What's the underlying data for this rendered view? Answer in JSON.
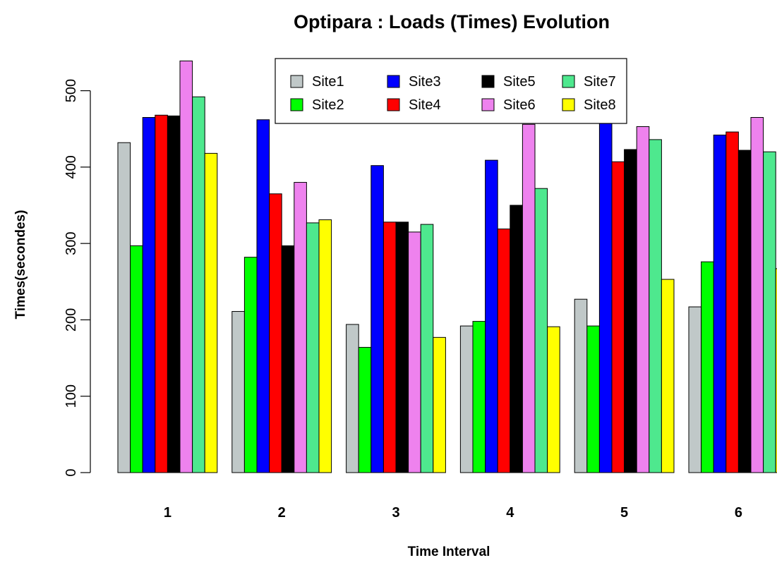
{
  "chart_data": {
    "type": "bar",
    "title": "Optipara : Loads (Times) Evolution",
    "xlabel": "Time Interval",
    "ylabel": "Times(secondes)",
    "ylim": [
      0,
      550
    ],
    "yticks": [
      "0",
      "100",
      "200",
      "300",
      "400",
      "500"
    ],
    "categories": [
      "1",
      "2",
      "3",
      "4",
      "5",
      "6"
    ],
    "legend_position": "top-center",
    "grid": false,
    "series": [
      {
        "name": "Site1",
        "color": "#c0c8c8",
        "values": [
          432,
          211,
          194,
          192,
          227,
          217
        ]
      },
      {
        "name": "Site2",
        "color": "#00ff00",
        "values": [
          297,
          282,
          164,
          198,
          192,
          276
        ]
      },
      {
        "name": "Site3",
        "color": "#0000ff",
        "values": [
          465,
          462,
          402,
          409,
          462,
          442
        ]
      },
      {
        "name": "Site4",
        "color": "#ff0000",
        "values": [
          468,
          365,
          328,
          319,
          407,
          446
        ]
      },
      {
        "name": "Site5",
        "color": "#000000",
        "values": [
          467,
          297,
          328,
          350,
          423,
          422
        ]
      },
      {
        "name": "Site6",
        "color": "#ee82ee",
        "values": [
          539,
          380,
          315,
          456,
          453,
          465
        ]
      },
      {
        "name": "Site7",
        "color": "#4ee88e",
        "values": [
          492,
          327,
          325,
          372,
          436,
          420
        ]
      },
      {
        "name": "Site8",
        "color": "#ffff00",
        "values": [
          418,
          331,
          177,
          191,
          253,
          267
        ]
      }
    ]
  }
}
